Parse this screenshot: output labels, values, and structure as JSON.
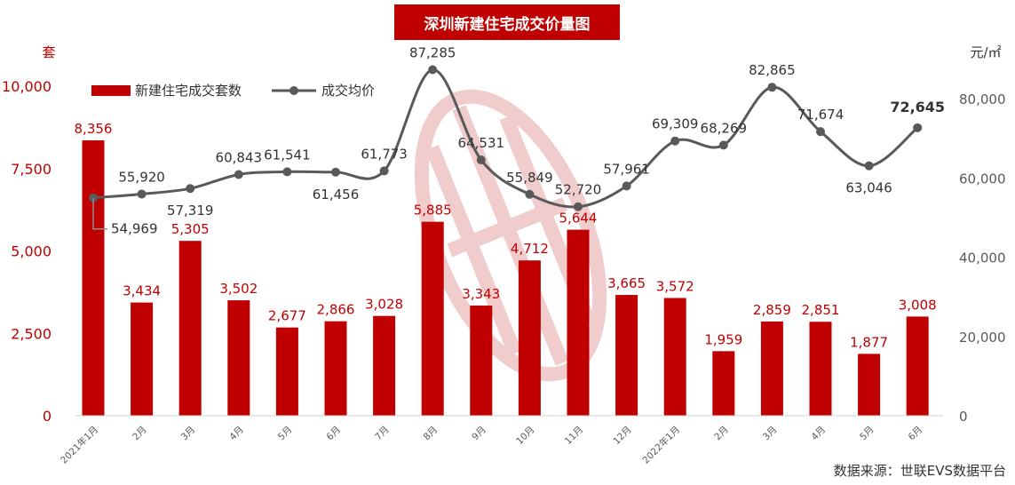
{
  "title": "深圳新建住宅成交价量图",
  "source": "数据来源：世联EVS数据平台",
  "colors": {
    "bar": "#c00000",
    "line": "#595959",
    "accent": "#c00000",
    "watermark": "#e6a3a3"
  },
  "chart_data": {
    "type": "bar+line",
    "categories": [
      "2021年1月",
      "2月",
      "3月",
      "4月",
      "5月",
      "6月",
      "7月",
      "8月",
      "9月",
      "10月",
      "11月",
      "12月",
      "2022年1月",
      "2月",
      "3月",
      "4月",
      "5月",
      "6月"
    ],
    "left_axis": {
      "unit": "套",
      "ylim": [
        0,
        10000
      ],
      "ticks": [
        "0",
        "2,500",
        "5,000",
        "7,500",
        "10,000"
      ]
    },
    "right_axis": {
      "unit": "元/㎡",
      "ylim": [
        0,
        100000
      ],
      "ticks": [
        "0",
        "20,000",
        "40,000",
        "60,000",
        "80,000"
      ]
    },
    "series": [
      {
        "name": "新建住宅成交套数",
        "type": "bar",
        "axis": "left",
        "values": [
          8356,
          3434,
          5305,
          3502,
          2677,
          2866,
          3028,
          5885,
          3343,
          4712,
          5644,
          3665,
          3572,
          1959,
          2859,
          2851,
          1877,
          3008
        ],
        "labels": [
          "8,356",
          "3,434",
          "5,305",
          "3,502",
          "2,677",
          "2,866",
          "3,028",
          "5,885",
          "3,343",
          "4,712",
          "5,644",
          "3,665",
          "3,572",
          "1,959",
          "2,859",
          "2,851",
          "1,877",
          "3,008"
        ]
      },
      {
        "name": "成交均价",
        "type": "line",
        "axis": "right",
        "values": [
          54969,
          55920,
          57319,
          60843,
          61541,
          61456,
          61773,
          87285,
          64531,
          55849,
          52720,
          57961,
          69309,
          68269,
          82865,
          71674,
          63046,
          72645
        ],
        "labels": [
          "54,969",
          "55,920",
          "57,319",
          "60,843",
          "61,541",
          "61,456",
          "61,773",
          "87,285",
          "64,531",
          "55,849",
          "52,720",
          "57,961",
          "69,309",
          "68,269",
          "82,865",
          "71,674",
          "63,046",
          "72,645"
        ]
      }
    ],
    "grid": false,
    "legend_position": "top-left"
  }
}
